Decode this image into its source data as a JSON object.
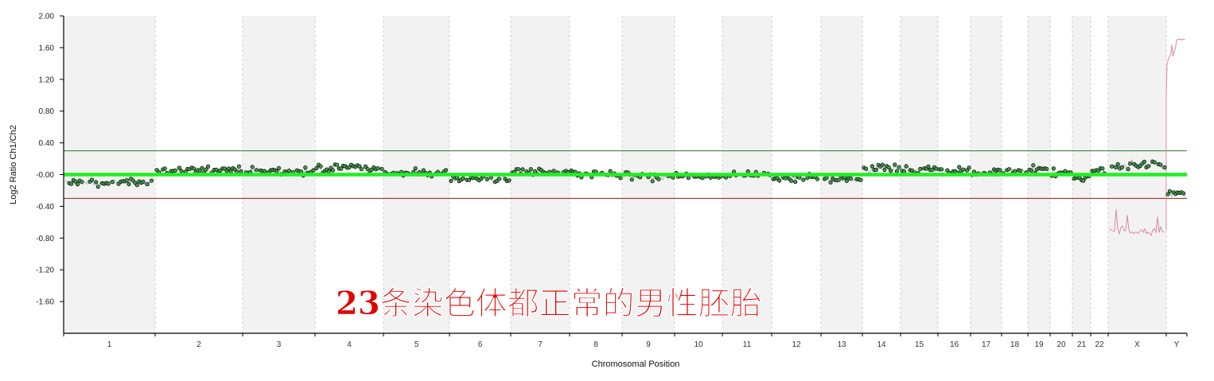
{
  "overlay_caption": "23条染色体都正常的男性胚胎",
  "chart_data": {
    "type": "scatter",
    "xlabel": "Chromosomal Position",
    "ylabel": "Log2 Ratio Ch1/Ch2",
    "ylim": [
      -2.0,
      2.0
    ],
    "y_ticks": [
      2.0,
      1.6,
      1.2,
      0.8,
      0.4,
      0.0,
      -0.4,
      -0.8,
      -1.2,
      -1.6
    ],
    "y_tick_labels": [
      "2.00",
      "1.60",
      "1.20",
      "0.80",
      "0.40",
      "-0.00",
      "-0.40",
      "-0.80",
      "-1.20",
      "-1.60"
    ],
    "threshold_upper": 0.3,
    "threshold_lower": -0.3,
    "baseline": 0.0,
    "grid": "vertical dashed chromosome boundaries",
    "chromosomes": [
      "1",
      "2",
      "3",
      "4",
      "5",
      "6",
      "7",
      "8",
      "9",
      "10",
      "11",
      "12",
      "13",
      "14",
      "15",
      "16",
      "17",
      "18",
      "19",
      "20",
      "21",
      "22",
      "X",
      "Y"
    ],
    "chromosome_means": [
      -0.1,
      0.05,
      0.05,
      0.08,
      0.02,
      -0.05,
      0.03,
      0.0,
      -0.03,
      -0.02,
      0.0,
      -0.05,
      -0.05,
      0.08,
      0.07,
      0.05,
      0.03,
      0.05,
      0.07,
      0.02,
      -0.05,
      0.05,
      0.12,
      -0.25
    ],
    "reference_trace": {
      "X": -0.7,
      "Y": 1.7
    },
    "colors": {
      "points": "#3fa04a",
      "baseline": "#22ee22",
      "upper_threshold": "#2a7a2a",
      "lower_threshold": "#a01818",
      "reference_trace": "#d88aa0",
      "band": "#f2f2f2",
      "title": "#e00000"
    }
  }
}
